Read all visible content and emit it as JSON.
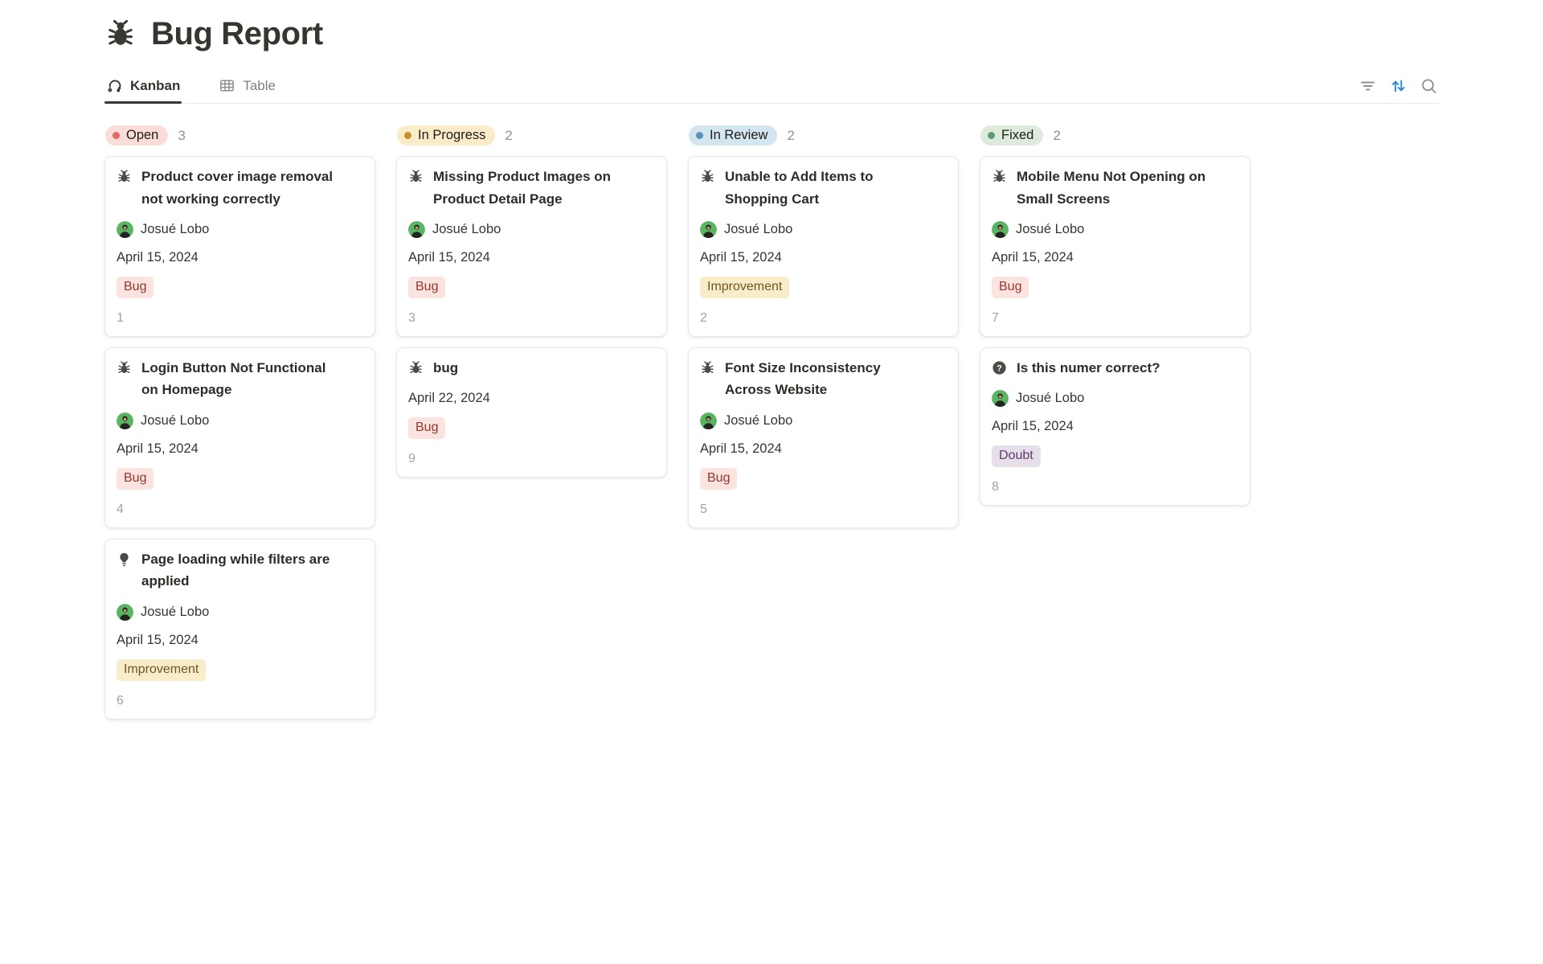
{
  "page": {
    "icon": "bug-icon",
    "title": "Bug Report"
  },
  "view_tabs": [
    {
      "label": "Kanban",
      "icon": "kanban-icon",
      "active": true
    },
    {
      "label": "Table",
      "icon": "table-icon",
      "active": false
    }
  ],
  "toolbar": {
    "filter_icon": "filter-icon",
    "sort_icon": "sort-arrows-icon",
    "search_icon": "search-icon",
    "sort_accent": "#2383e2",
    "icon_gray": "#8d8c89"
  },
  "avatar_color": "#5ab562",
  "board": {
    "columns": [
      {
        "name": "Open",
        "count": "3",
        "pill_bg": "#fbdcd8",
        "dot_color": "#df6a62",
        "cards": [
          {
            "icon": "bug-icon",
            "title": "Product cover image removal not working correctly",
            "assignee": "Josué Lobo",
            "date": "April 15, 2024",
            "tag": {
              "label": "Bug",
              "bg": "#fbe4e0",
              "color": "#96352c"
            },
            "number": "1"
          },
          {
            "icon": "bug-icon",
            "title": "Login Button Not Functional on Homepage",
            "assignee": "Josué Lobo",
            "date": "April 15, 2024",
            "tag": {
              "label": "Bug",
              "bg": "#fbe4e0",
              "color": "#96352c"
            },
            "number": "4"
          },
          {
            "icon": "lightbulb-icon",
            "title": "Page loading while filters are applied",
            "assignee": "Josué Lobo",
            "date": "April 15, 2024",
            "tag": {
              "label": "Improvement",
              "bg": "#f9ecc8",
              "color": "#6e5523"
            },
            "number": "6"
          }
        ]
      },
      {
        "name": "In Progress",
        "count": "2",
        "pill_bg": "#fbecc9",
        "dot_color": "#c5912e",
        "cards": [
          {
            "icon": "bug-icon",
            "title": "Missing Product Images on Product Detail Page",
            "assignee": "Josué Lobo",
            "date": "April 15, 2024",
            "tag": {
              "label": "Bug",
              "bg": "#fbe4e0",
              "color": "#96352c"
            },
            "number": "3"
          },
          {
            "icon": "bug-icon",
            "title": "bug",
            "assignee": null,
            "date": "April 22, 2024",
            "tag": {
              "label": "Bug",
              "bg": "#fbe4e0",
              "color": "#96352c"
            },
            "number": "9"
          }
        ]
      },
      {
        "name": "In Review",
        "count": "2",
        "pill_bg": "#d3e5ef",
        "dot_color": "#5a92b6",
        "cards": [
          {
            "icon": "bug-icon",
            "title": "Unable to Add Items to Shopping Cart",
            "assignee": "Josué Lobo",
            "date": "April 15, 2024",
            "tag": {
              "label": "Improvement",
              "bg": "#f9ecc8",
              "color": "#6e5523"
            },
            "number": "2"
          },
          {
            "icon": "bug-icon",
            "title": "Font Size Inconsistency Across Website",
            "assignee": "Josué Lobo",
            "date": "April 15, 2024",
            "tag": {
              "label": "Bug",
              "bg": "#fbe4e0",
              "color": "#96352c"
            },
            "number": "5"
          }
        ]
      },
      {
        "name": "Fixed",
        "count": "2",
        "pill_bg": "#dcebdc",
        "dot_color": "#5d9b6e",
        "cards": [
          {
            "icon": "bug-icon",
            "title": "Mobile Menu Not Opening on Small Screens",
            "assignee": "Josué Lobo",
            "date": "April 15, 2024",
            "tag": {
              "label": "Bug",
              "bg": "#fbe4e0",
              "color": "#96352c"
            },
            "number": "7"
          },
          {
            "icon": "question-icon",
            "title": "Is this numer correct?",
            "assignee": "Josué Lobo",
            "date": "April 15, 2024",
            "tag": {
              "label": "Doubt",
              "bg": "#e6dfe9",
              "color": "#5f3a68"
            },
            "number": "8"
          }
        ]
      }
    ]
  }
}
